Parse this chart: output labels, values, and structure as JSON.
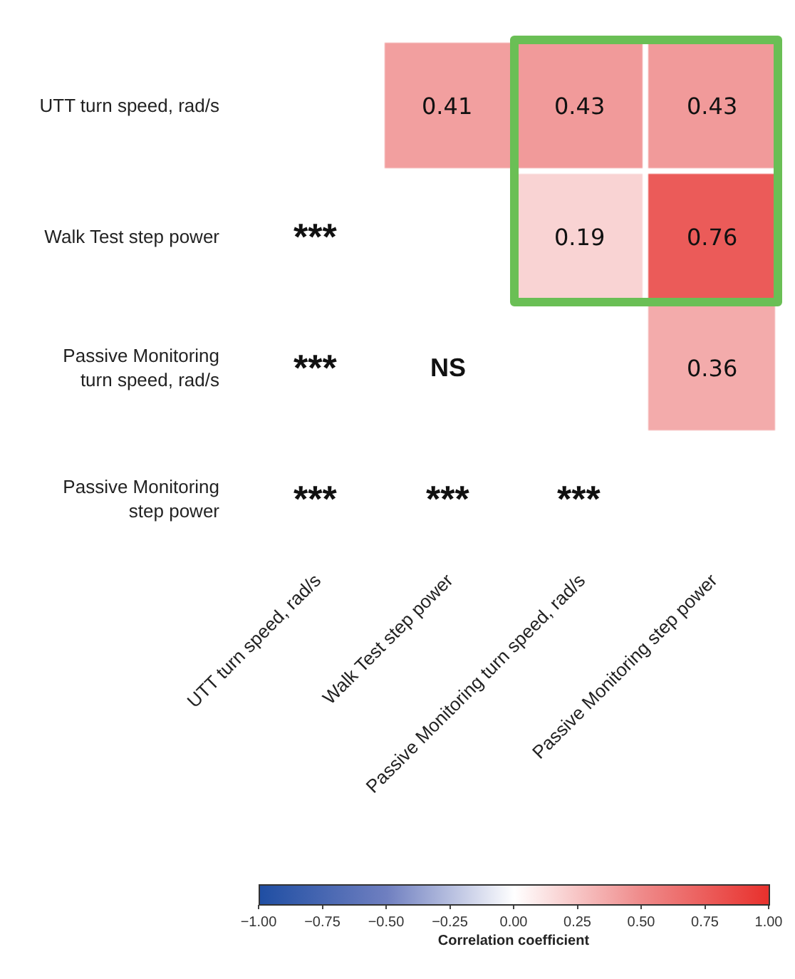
{
  "chart_data": {
    "type": "heatmap",
    "categories": [
      "UTT turn speed, rad/s",
      "Walk Test step power",
      "Passive Monitoring turn speed, rad/s",
      "Passive Monitoring step power"
    ],
    "y_categories": [
      "UTT turn speed, rad/s",
      "Walk Test step power",
      "Passive Monitoring turn speed, rad/s",
      "Passive Monitoring step power"
    ],
    "cells": [
      [
        null,
        0.41,
        0.43,
        0.43
      ],
      [
        null,
        null,
        0.19,
        0.76
      ],
      [
        null,
        null,
        null,
        0.36
      ],
      [
        null,
        null,
        null,
        null
      ]
    ],
    "cell_labels": [
      [
        null,
        "0.41",
        "0.43",
        "0.43"
      ],
      [
        "***",
        null,
        "0.19",
        "0.76"
      ],
      [
        "***",
        "NS",
        null,
        "0.36"
      ],
      [
        "***",
        "***",
        "***",
        null
      ]
    ],
    "clim": [
      -1,
      1
    ],
    "cticks": [
      {
        "value": -1,
        "label": "−1.00"
      },
      {
        "value": -0.75,
        "label": "−0.75"
      },
      {
        "value": -0.5,
        "label": "−0.50"
      },
      {
        "value": -0.25,
        "label": "−0.25"
      },
      {
        "value": 0,
        "label": "0.00"
      },
      {
        "value": 0.25,
        "label": "0.25"
      },
      {
        "value": 0.5,
        "label": "0.50"
      },
      {
        "value": 0.75,
        "label": "0.75"
      },
      {
        "value": 1,
        "label": "1.00"
      }
    ],
    "clabel": "Correlation coefficient"
  }
}
